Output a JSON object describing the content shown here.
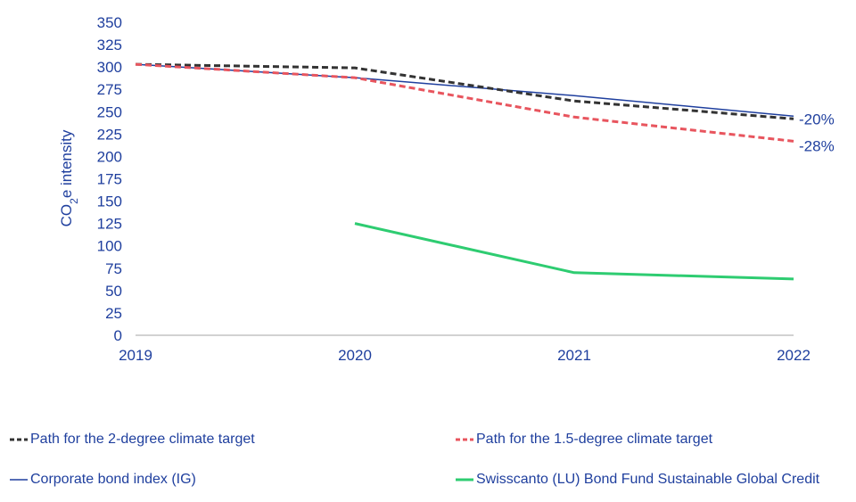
{
  "chart_data": {
    "type": "line",
    "title": "",
    "xlabel": "",
    "ylabel": "CO2e intensity",
    "ylabel_parts": [
      "CO",
      "2",
      "e intensity"
    ],
    "x": [
      "2019",
      "2020",
      "2021",
      "2022"
    ],
    "ylim": [
      0,
      350
    ],
    "yticks": [
      0,
      25,
      50,
      75,
      100,
      125,
      150,
      175,
      200,
      225,
      250,
      275,
      300,
      325,
      350
    ],
    "grid": false,
    "legend_position": "bottom",
    "series": [
      {
        "name": "Path for the 2-degree climate target",
        "values": [
          303,
          299,
          262,
          242
        ],
        "color": "#333333",
        "style": "dashed"
      },
      {
        "name": "Path for the 1.5-degree climate target",
        "values": [
          303,
          288,
          244,
          217
        ],
        "color": "#e8555e",
        "style": "dashed"
      },
      {
        "name": "Corporate bond index (IG)",
        "values": [
          303,
          288,
          268,
          245
        ],
        "color": "#1f3f9e",
        "style": "solid"
      },
      {
        "name": "Swisscanto (LU) Bond Fund Sustainable Global Credit",
        "values": [
          null,
          125,
          70,
          63
        ],
        "color": "#2ecc71",
        "style": "solid"
      }
    ],
    "annotations": [
      {
        "text": "-20%",
        "x": "2022",
        "y": 242
      },
      {
        "text": "-28%",
        "x": "2022",
        "y": 217
      }
    ]
  }
}
